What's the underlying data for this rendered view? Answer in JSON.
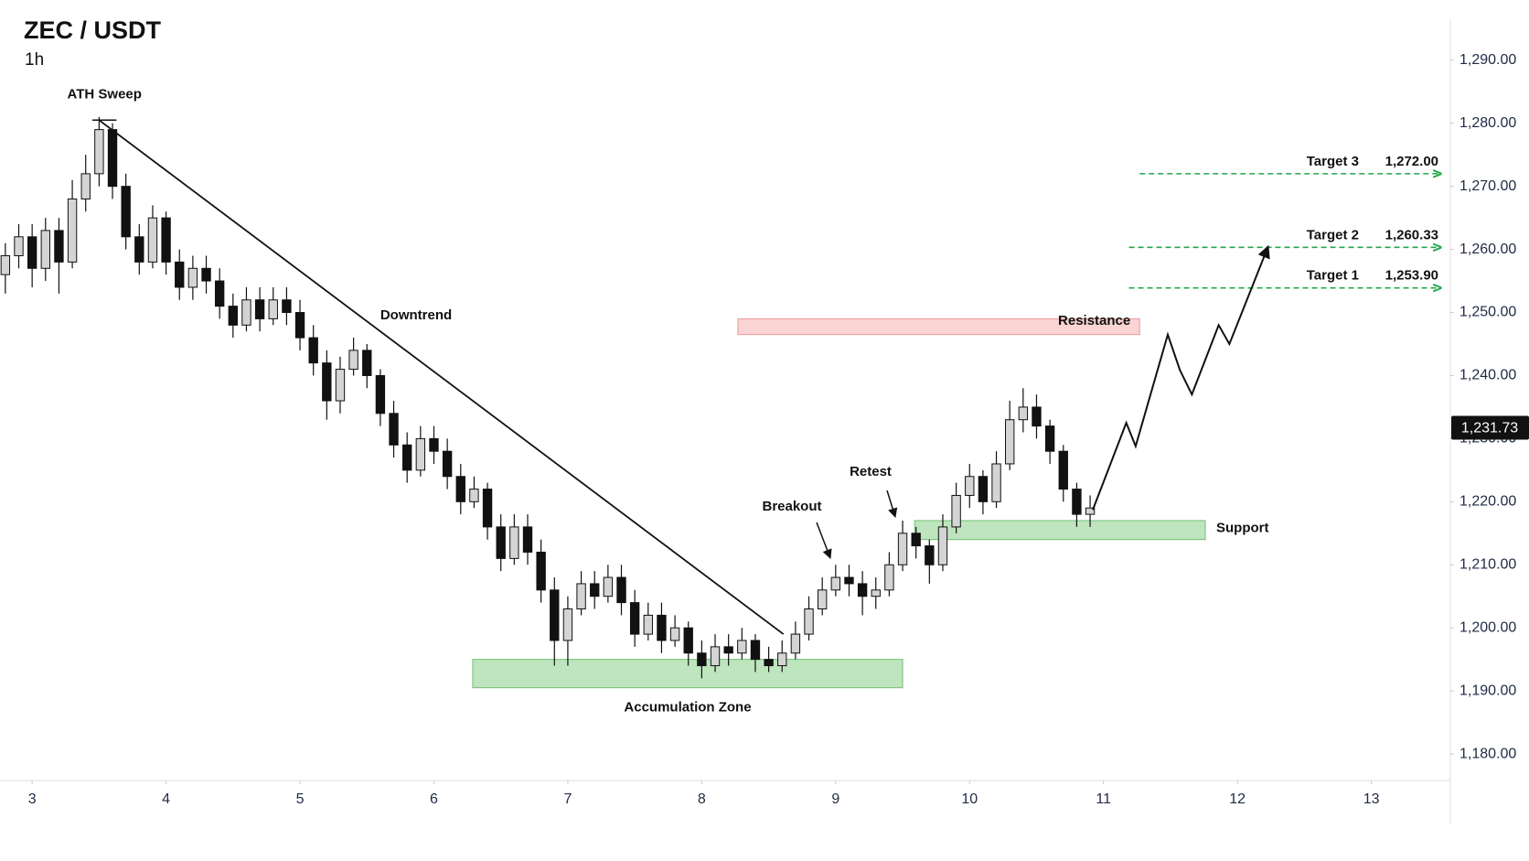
{
  "chart_data": {
    "type": "candlestick",
    "title": "ZEC / USDT",
    "subtitle": "1h",
    "xlim": [
      2.76,
      13.59
    ],
    "xticks": [
      3,
      4,
      5,
      6,
      7,
      8,
      9,
      10,
      11,
      12,
      13
    ],
    "ylim": [
      1175.8,
      1296.5
    ],
    "yticks": [
      {
        "value": 1180,
        "label": "1,180.00"
      },
      {
        "value": 1190,
        "label": "1,190.00"
      },
      {
        "value": 1200,
        "label": "1,200.00"
      },
      {
        "value": 1210,
        "label": "1,210.00"
      },
      {
        "value": 1220,
        "label": "1,220.00"
      },
      {
        "value": 1230,
        "label": "1,230.00"
      },
      {
        "value": 1240,
        "label": "1,240.00"
      },
      {
        "value": 1250,
        "label": "1,250.00"
      },
      {
        "value": 1260,
        "label": "1,260.00"
      },
      {
        "value": 1270,
        "label": "1,270.00"
      },
      {
        "value": 1280,
        "label": "1,280.00"
      },
      {
        "value": 1290,
        "label": "1,290.00"
      }
    ],
    "up_color": "#d4d4d4",
    "down_color": "#111111",
    "candles": {
      "x": [
        2.8,
        2.9,
        3.0,
        3.1,
        3.2,
        3.3,
        3.4,
        3.5,
        3.6,
        3.7,
        3.8,
        3.9,
        4.0,
        4.1,
        4.2,
        4.3,
        4.4,
        4.5,
        4.6,
        4.7,
        4.8,
        4.9,
        5.0,
        5.1,
        5.2,
        5.3,
        5.4,
        5.5,
        5.6,
        5.7,
        5.8,
        5.9,
        6.0,
        6.1,
        6.2,
        6.3,
        6.4,
        6.5,
        6.6,
        6.7,
        6.8,
        6.9,
        7.0,
        7.1,
        7.2,
        7.3,
        7.4,
        7.5,
        7.6,
        7.7,
        7.8,
        7.9,
        8.0,
        8.1,
        8.2,
        8.3,
        8.4,
        8.5,
        8.6,
        8.7,
        8.8,
        8.9,
        9.0,
        9.1,
        9.2,
        9.3,
        9.4,
        9.5,
        9.6,
        9.7,
        9.8,
        9.9,
        10.0,
        10.1,
        10.2,
        10.3,
        10.4,
        10.5,
        10.6,
        10.7,
        10.8,
        10.9
      ],
      "open": [
        1256,
        1259,
        1262,
        1257,
        1263,
        1258,
        1268,
        1272,
        1279,
        1270,
        1262,
        1258,
        1265,
        1258,
        1254,
        1257,
        1255,
        1251,
        1248,
        1252,
        1249,
        1252,
        1250,
        1246,
        1242,
        1236,
        1241,
        1244,
        1240,
        1234,
        1229,
        1225,
        1230,
        1228,
        1224,
        1220,
        1222,
        1216,
        1211,
        1216,
        1212,
        1206,
        1198,
        1203,
        1207,
        1205,
        1208,
        1204,
        1199,
        1202,
        1198,
        1200,
        1196,
        1194,
        1197,
        1196,
        1198,
        1195,
        1194,
        1196,
        1199,
        1203,
        1206,
        1208,
        1207,
        1205,
        1206,
        1210,
        1215,
        1213,
        1210,
        1216,
        1221,
        1224,
        1220,
        1226,
        1233,
        1235,
        1232,
        1228,
        1222,
        1218
      ],
      "high": [
        1261,
        1264,
        1264,
        1265,
        1265,
        1271,
        1275,
        1281,
        1280,
        1272,
        1264,
        1267,
        1266,
        1260,
        1259,
        1259,
        1257,
        1253,
        1254,
        1254,
        1254,
        1254,
        1252,
        1248,
        1244,
        1243,
        1246,
        1245,
        1241,
        1236,
        1231,
        1232,
        1232,
        1230,
        1226,
        1224,
        1223,
        1218,
        1218,
        1218,
        1214,
        1208,
        1205,
        1209,
        1209,
        1210,
        1210,
        1206,
        1204,
        1204,
        1202,
        1201,
        1198,
        1199,
        1199,
        1200,
        1199,
        1197,
        1198,
        1201,
        1205,
        1208,
        1210,
        1210,
        1209,
        1208,
        1212,
        1217,
        1216,
        1214,
        1218,
        1223,
        1226,
        1225,
        1228,
        1236,
        1238,
        1237,
        1233,
        1229,
        1223,
        1221
      ],
      "low": [
        1253,
        1257,
        1254,
        1255,
        1253,
        1257,
        1266,
        1270,
        1268,
        1260,
        1256,
        1257,
        1256,
        1252,
        1252,
        1253,
        1249,
        1246,
        1247,
        1247,
        1248,
        1248,
        1244,
        1240,
        1233,
        1234,
        1240,
        1238,
        1232,
        1227,
        1223,
        1224,
        1226,
        1222,
        1218,
        1219,
        1214,
        1209,
        1210,
        1210,
        1204,
        1194,
        1194,
        1202,
        1203,
        1204,
        1202,
        1197,
        1198,
        1196,
        1197,
        1194,
        1192,
        1193,
        1194,
        1195,
        1193,
        1193,
        1193,
        1195,
        1198,
        1202,
        1205,
        1205,
        1202,
        1203,
        1205,
        1209,
        1211,
        1207,
        1209,
        1215,
        1219,
        1218,
        1219,
        1225,
        1231,
        1230,
        1226,
        1220,
        1216,
        1216
      ],
      "close": [
        1259,
        1262,
        1257,
        1263,
        1258,
        1268,
        1272,
        1279,
        1270,
        1262,
        1258,
        1265,
        1258,
        1254,
        1257,
        1255,
        1251,
        1248,
        1252,
        1249,
        1252,
        1250,
        1246,
        1242,
        1236,
        1241,
        1244,
        1240,
        1234,
        1229,
        1225,
        1230,
        1228,
        1224,
        1220,
        1222,
        1216,
        1211,
        1216,
        1212,
        1206,
        1198,
        1203,
        1207,
        1205,
        1208,
        1204,
        1199,
        1202,
        1198,
        1200,
        1196,
        1194,
        1197,
        1196,
        1198,
        1195,
        1194,
        1196,
        1199,
        1203,
        1206,
        1208,
        1207,
        1205,
        1206,
        1210,
        1215,
        1213,
        1210,
        1216,
        1221,
        1224,
        1220,
        1226,
        1233,
        1235,
        1232,
        1228,
        1222,
        1218,
        1219
      ]
    },
    "last_price": {
      "value": 1231.73,
      "label": "1,231.73"
    },
    "ath_sweep": {
      "label": "ATH Sweep",
      "x": [
        3.45,
        3.63
      ],
      "value": 1280.5
    },
    "trendline": {
      "label": "Downtrend",
      "x": [
        3.5,
        8.61
      ],
      "values": [
        1280.5,
        1199
      ]
    },
    "zones": [
      {
        "name": "Accumulation Zone",
        "x": [
          6.29,
          9.5
        ],
        "range": [
          1190.5,
          1195
        ],
        "color": "#a8dca8"
      },
      {
        "name": "Support",
        "x": [
          9.59,
          11.76
        ],
        "range": [
          1214,
          1217
        ],
        "color": "#a8dca8"
      },
      {
        "name": "Resistance",
        "x": [
          8.27,
          11.27
        ],
        "range": [
          1246.5,
          1249
        ],
        "color": "#f8c4c4"
      }
    ],
    "annotations": [
      "Breakout",
      "Retest"
    ],
    "targets": [
      {
        "label": "Target 3",
        "value": 1272,
        "value_label": "1,272.00",
        "x": [
          11.27,
          13.52
        ]
      },
      {
        "label": "Target 2",
        "value": 1260.33,
        "value_label": "1,260.33",
        "x": [
          11.19,
          13.52
        ]
      },
      {
        "label": "Target 1",
        "value": 1253.9,
        "value_label": "1,253.90",
        "x": [
          11.19,
          13.52
        ]
      }
    ],
    "target_color": "#22a84a",
    "projection": {
      "x": [
        10.92,
        11.17,
        11.24,
        11.48,
        11.57,
        11.66,
        11.86,
        11.94,
        12.23
      ],
      "values": [
        1218.7,
        1232.5,
        1228.8,
        1246.5,
        1240.9,
        1237,
        1248,
        1245,
        1260.5
      ]
    }
  }
}
